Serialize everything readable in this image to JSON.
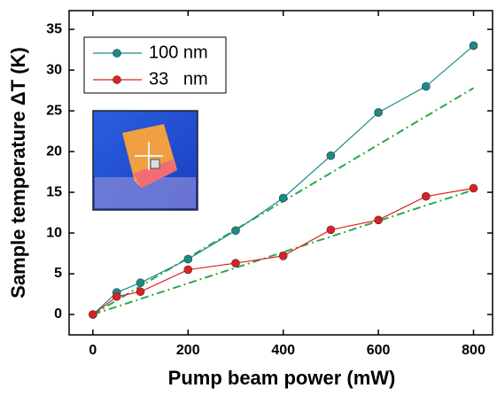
{
  "chart_data": {
    "type": "line",
    "x_label": "Pump beam power (mW)",
    "y_label": "Sample temperature ΔT (K)",
    "x": [
      0,
      50,
      100,
      200,
      300,
      400,
      500,
      600,
      700,
      800
    ],
    "series": [
      {
        "name": "100 nm",
        "color": "#1a8a8a",
        "values": [
          0,
          2.7,
          3.9,
          6.8,
          10.3,
          14.3,
          19.5,
          24.8,
          28,
          33
        ]
      },
      {
        "name": "33   nm",
        "color": "#e02020",
        "values": [
          0,
          2.2,
          2.8,
          5.5,
          6.3,
          7.2,
          10.4,
          11.6,
          14.5,
          15.5
        ]
      }
    ],
    "fit_lines": [
      {
        "color": "#2aa84a",
        "x": [
          0,
          800
        ],
        "values": [
          0,
          27.8
        ]
      },
      {
        "color": "#2aa84a",
        "x": [
          0,
          800
        ],
        "values": [
          0,
          15.3
        ]
      }
    ],
    "xlim": [
      -50,
      840
    ],
    "ylim": [
      -2.5,
      37.3
    ],
    "xticks": [
      0,
      200,
      400,
      600,
      800
    ],
    "yticks": [
      0,
      5,
      10,
      15,
      20,
      25,
      30,
      35
    ],
    "legend": "upper left"
  }
}
